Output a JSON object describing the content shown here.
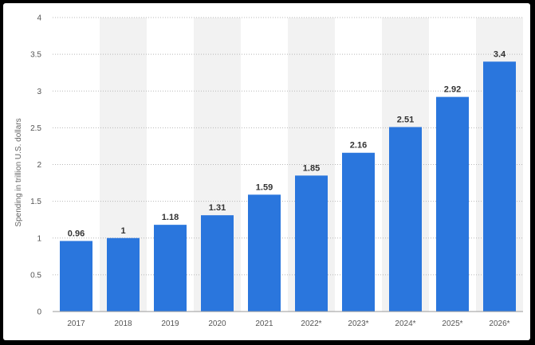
{
  "chart_data": {
    "type": "bar",
    "categories": [
      "2017",
      "2018",
      "2019",
      "2020",
      "2021",
      "2022*",
      "2023*",
      "2024*",
      "2025*",
      "2026*"
    ],
    "values": [
      0.96,
      1,
      1.18,
      1.31,
      1.59,
      1.85,
      2.16,
      2.51,
      2.92,
      3.4
    ],
    "value_labels": [
      "0.96",
      "1",
      "1.18",
      "1.31",
      "1.59",
      "1.85",
      "2.16",
      "2.51",
      "2.92",
      "3.4"
    ],
    "title": "",
    "xlabel": "",
    "ylabel": "Spending in trillion U.S. dollars",
    "ylim": [
      0,
      4
    ],
    "yticks": [
      0,
      0.5,
      1,
      1.5,
      2,
      2.5,
      3,
      3.5,
      4
    ],
    "ytick_labels": [
      "0",
      "0.5",
      "1",
      "1.5",
      "2",
      "2.5",
      "3",
      "3.5",
      "4"
    ],
    "grid": true,
    "bar_color": "#2a76dd",
    "band_color": "#f2f2f2"
  }
}
